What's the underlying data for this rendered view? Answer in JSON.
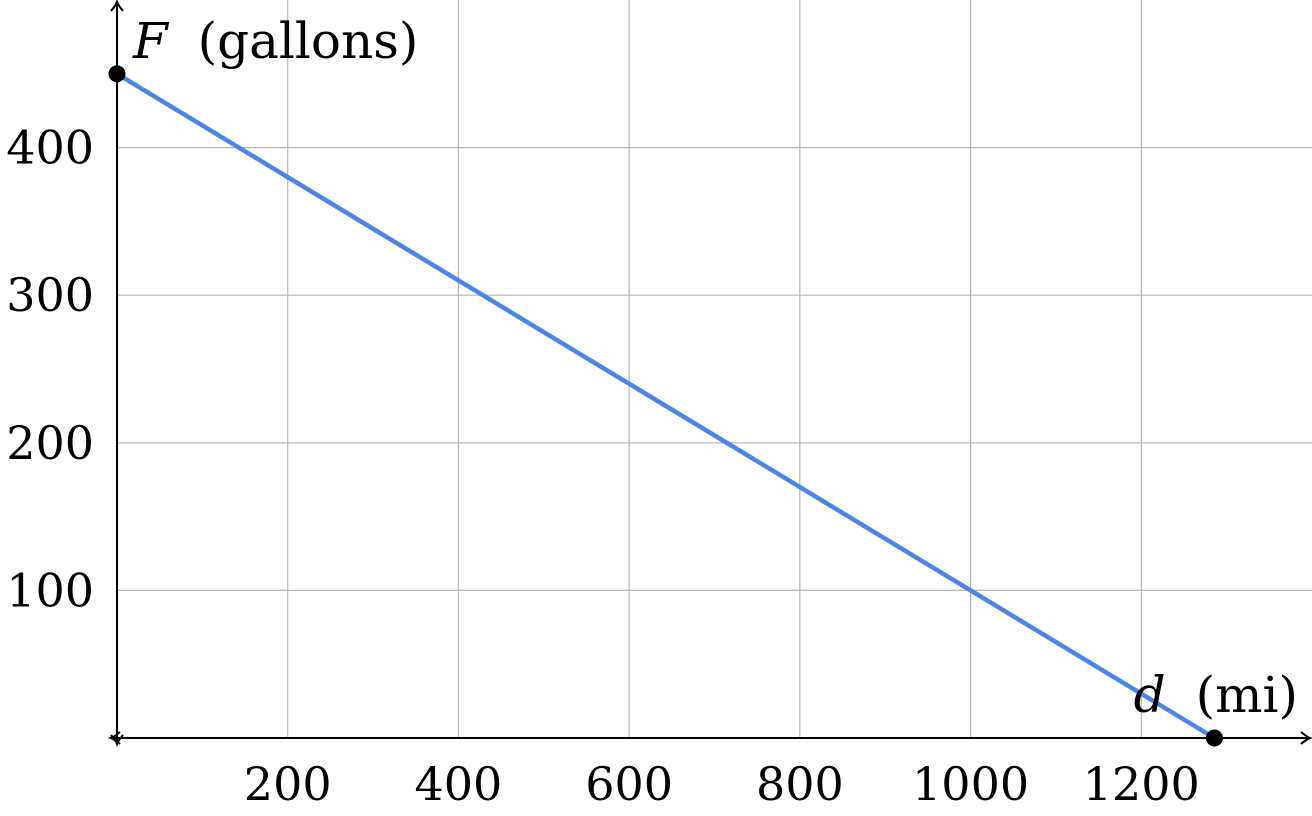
{
  "chart_data": {
    "type": "line",
    "xlabel": {
      "var": "d",
      "unit": "(mi)"
    },
    "ylabel": {
      "var": "F",
      "unit": "(gallons)"
    },
    "xlim": [
      0,
      1400
    ],
    "ylim": [
      0,
      500
    ],
    "x_ticks": [
      200,
      400,
      600,
      800,
      1000,
      1200
    ],
    "y_ticks": [
      100,
      200,
      300,
      400
    ],
    "grid": true,
    "series": [
      {
        "color": "#4a86e8",
        "x": [
          0,
          1285.7
        ],
        "y": [
          450,
          0
        ]
      }
    ],
    "points": [
      {
        "x": 0,
        "y": 450
      },
      {
        "x": 1285.7,
        "y": 0
      }
    ]
  }
}
